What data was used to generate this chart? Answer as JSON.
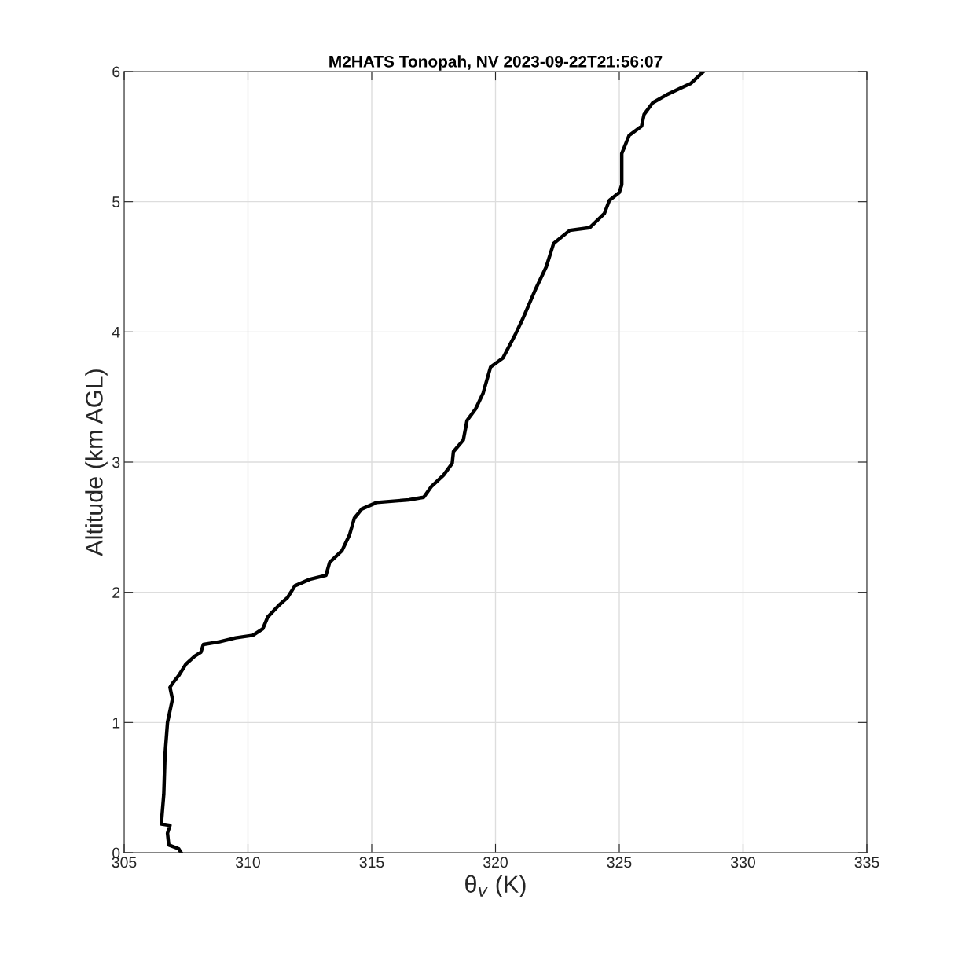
{
  "chart_data": {
    "type": "line",
    "title": "M2HATS Tonopah, NV 2023-09-22T21:56:07",
    "xlabel": "θ$_{v}$ (K)",
    "ylabel": "Altitude (km AGL)",
    "series": [
      {
        "color": "#000000",
        "x": [
          307.3,
          307.2,
          306.8,
          306.75,
          306.85,
          306.5,
          306.6,
          306.65,
          306.75,
          306.85,
          306.95,
          306.85,
          306.95,
          307.2,
          307.5,
          307.85,
          308.1,
          308.2,
          308.85,
          309.5,
          310.2,
          310.6,
          310.8,
          311.25,
          311.6,
          311.9,
          312.5,
          313.15,
          313.3,
          313.8,
          314.1,
          314.3,
          314.6,
          315.2,
          316.5,
          317.1,
          317.4,
          317.9,
          318.25,
          318.3,
          318.7,
          318.85,
          319.2,
          319.5,
          319.8,
          320.3,
          320.8,
          321.1,
          321.6,
          322.05,
          322.35,
          323.0,
          323.8,
          324.4,
          324.6,
          325.0,
          325.1,
          325.1,
          325.4,
          325.9,
          326.0,
          326.35,
          326.9,
          327.45,
          327.9,
          328.4
        ],
        "values": [
          0,
          0.03,
          0.06,
          0.15,
          0.21,
          0.22,
          0.45,
          0.75,
          1.0,
          1.09,
          1.18,
          1.27,
          1.3,
          1.36,
          1.45,
          1.51,
          1.54,
          1.6,
          1.62,
          1.65,
          1.67,
          1.72,
          1.81,
          1.9,
          1.96,
          2.05,
          2.1,
          2.13,
          2.23,
          2.32,
          2.44,
          2.57,
          2.64,
          2.69,
          2.71,
          2.73,
          2.81,
          2.9,
          2.99,
          3.08,
          3.17,
          3.32,
          3.41,
          3.53,
          3.73,
          3.8,
          3.98,
          4.1,
          4.32,
          4.5,
          4.68,
          4.78,
          4.8,
          4.91,
          5.01,
          5.07,
          5.13,
          5.37,
          5.51,
          5.58,
          5.67,
          5.76,
          5.82,
          5.87,
          5.91,
          6.0
        ]
      }
    ],
    "xlim": [
      305,
      335
    ],
    "xticks": [
      305,
      310,
      315,
      320,
      325,
      330,
      335
    ],
    "ylim": [
      0,
      6
    ],
    "yticks": [
      0,
      1,
      2,
      3,
      4,
      5,
      6
    ],
    "grid": true,
    "marker": "none",
    "line_style": "solid"
  }
}
